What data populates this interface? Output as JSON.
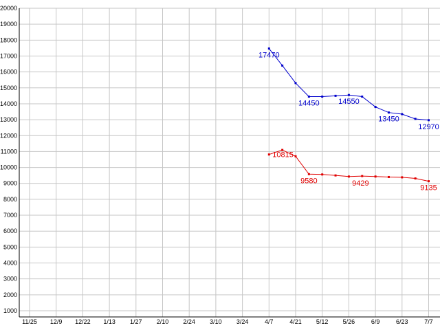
{
  "chart_data": {
    "type": "line",
    "title": "",
    "xlabel": "",
    "ylabel": "",
    "grid": true,
    "legend": "none",
    "x_tick_labels": [
      "11/25",
      "12/9",
      "12/22",
      "1/13",
      "1/27",
      "2/10",
      "2/24",
      "3/10",
      "3/24",
      "4/7",
      "4/21",
      "5/12",
      "5/26",
      "6/9",
      "6/23",
      "7/7"
    ],
    "y_axis": {
      "min": 1000,
      "max": 20000,
      "step": 1000
    },
    "colors": {
      "background": "#ffffff",
      "grid": "#c6c6c6",
      "axis": "#000000",
      "tick_text": "#000000"
    },
    "series": [
      {
        "name": "upper-blue-series",
        "color": "#0000cc",
        "points": [
          {
            "x": 9,
            "v": 17470,
            "label": "17470",
            "label_pos": "below"
          },
          {
            "x": 9.5,
            "v": 16400
          },
          {
            "x": 10,
            "v": 15300
          },
          {
            "x": 10.5,
            "v": 14450,
            "label": "14450",
            "label_pos": "below"
          },
          {
            "x": 11,
            "v": 14450
          },
          {
            "x": 11.5,
            "v": 14500
          },
          {
            "x": 12,
            "v": 14550,
            "label": "14550",
            "label_pos": "below"
          },
          {
            "x": 12.5,
            "v": 14450
          },
          {
            "x": 13,
            "v": 13800
          },
          {
            "x": 13.5,
            "v": 13450,
            "label": "13450",
            "label_pos": "below"
          },
          {
            "x": 14,
            "v": 13350
          },
          {
            "x": 14.5,
            "v": 13050
          },
          {
            "x": 15,
            "v": 12970,
            "label": "12970",
            "label_pos": "below"
          }
        ]
      },
      {
        "name": "lower-red-series",
        "color": "#e00000",
        "points": [
          {
            "x": 9,
            "v": 10815,
            "label": "10815",
            "label_pos": "right"
          },
          {
            "x": 9.5,
            "v": 11100
          },
          {
            "x": 10,
            "v": 10700
          },
          {
            "x": 10.5,
            "v": 9580,
            "label": "9580",
            "label_pos": "below"
          },
          {
            "x": 11,
            "v": 9560
          },
          {
            "x": 11.5,
            "v": 9500
          },
          {
            "x": 12,
            "v": 9429,
            "label": "9429",
            "label_pos": "below-right"
          },
          {
            "x": 12.5,
            "v": 9460
          },
          {
            "x": 13,
            "v": 9430
          },
          {
            "x": 13.5,
            "v": 9400
          },
          {
            "x": 14,
            "v": 9380
          },
          {
            "x": 14.5,
            "v": 9310
          },
          {
            "x": 15,
            "v": 9135,
            "label": "9135",
            "label_pos": "below"
          }
        ]
      }
    ]
  }
}
